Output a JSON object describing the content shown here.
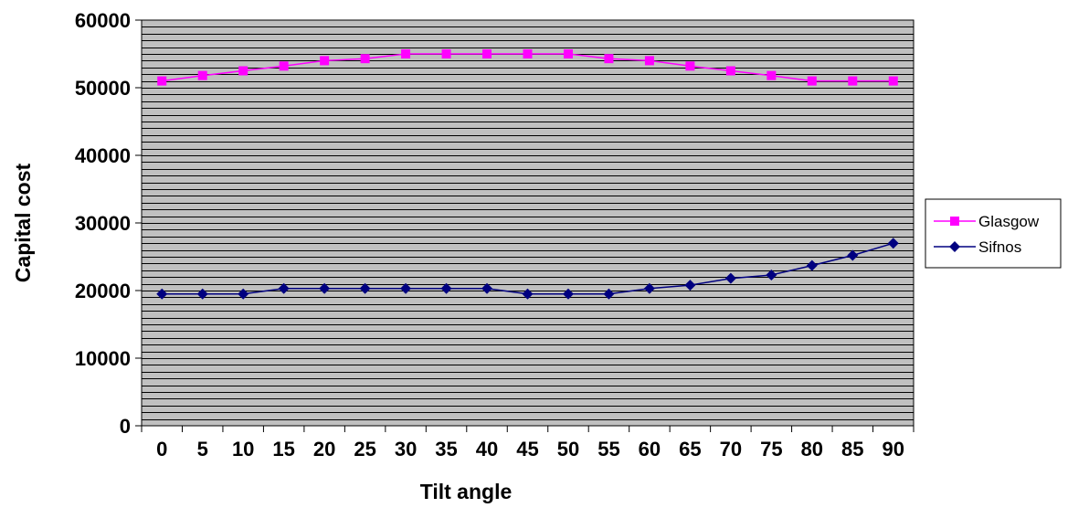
{
  "chart_data": {
    "type": "line",
    "title": "",
    "xlabel": "Tilt angle",
    "ylabel": "Capital cost",
    "categories": [
      "0",
      "5",
      "10",
      "15",
      "20",
      "25",
      "30",
      "35",
      "40",
      "45",
      "50",
      "55",
      "60",
      "65",
      "70",
      "75",
      "80",
      "85",
      "90"
    ],
    "yticks": [
      "0",
      "10000",
      "20000",
      "30000",
      "40000",
      "50000",
      "60000"
    ],
    "ylim": [
      0,
      60000
    ],
    "grid": true,
    "legend": "right",
    "colors": {
      "plot_background": "#c0c0c0",
      "gridline": "#000000",
      "glasgow": "#ff00ff",
      "sifnos": "#000080"
    },
    "series": [
      {
        "name": "Glasgow",
        "marker": "square",
        "values": [
          51000,
          51800,
          52500,
          53200,
          54000,
          54300,
          55000,
          55000,
          55000,
          55000,
          55000,
          54300,
          54000,
          53200,
          52500,
          51800,
          51000,
          51000,
          51000
        ]
      },
      {
        "name": "Sifnos",
        "marker": "diamond",
        "values": [
          19500,
          19500,
          19500,
          20300,
          20300,
          20300,
          20300,
          20300,
          20300,
          19500,
          19500,
          19500,
          20300,
          20800,
          21800,
          22300,
          23700,
          25200,
          27000
        ]
      }
    ]
  }
}
